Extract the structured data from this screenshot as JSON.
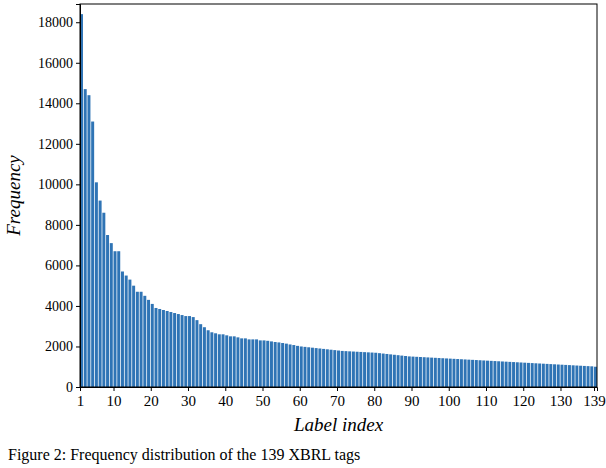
{
  "chart_data": {
    "type": "bar",
    "title": "Figure 2: Frequency distribution of the 139 XBRL tags",
    "x_label": "Label index",
    "y_label": "Frequency",
    "x": [
      1,
      2,
      3,
      4,
      5,
      6,
      7,
      8,
      9,
      10,
      11,
      12,
      13,
      14,
      15,
      16,
      17,
      18,
      19,
      20,
      21,
      22,
      23,
      24,
      25,
      26,
      27,
      28,
      29,
      30,
      31,
      32,
      33,
      34,
      35,
      36,
      37,
      38,
      39,
      40,
      41,
      42,
      43,
      44,
      45,
      46,
      47,
      48,
      49,
      50,
      51,
      52,
      53,
      54,
      55,
      56,
      57,
      58,
      59,
      60,
      61,
      62,
      63,
      64,
      65,
      66,
      67,
      68,
      69,
      70,
      71,
      72,
      73,
      74,
      75,
      76,
      77,
      78,
      79,
      80,
      81,
      82,
      83,
      84,
      85,
      86,
      87,
      88,
      89,
      90,
      91,
      92,
      93,
      94,
      95,
      96,
      97,
      98,
      99,
      100,
      101,
      102,
      103,
      104,
      105,
      106,
      107,
      108,
      109,
      110,
      111,
      112,
      113,
      114,
      115,
      116,
      117,
      118,
      119,
      120,
      121,
      122,
      123,
      124,
      125,
      126,
      127,
      128,
      129,
      130,
      131,
      132,
      133,
      134,
      135,
      136,
      137,
      138,
      139
    ],
    "values": [
      18400,
      14700,
      14400,
      13100,
      10100,
      9200,
      8600,
      7500,
      7100,
      6700,
      6700,
      5700,
      5500,
      5300,
      5000,
      4700,
      4700,
      4500,
      4300,
      4100,
      3900,
      3850,
      3800,
      3750,
      3700,
      3650,
      3600,
      3550,
      3500,
      3500,
      3450,
      3300,
      3100,
      2950,
      2800,
      2700,
      2650,
      2600,
      2600,
      2550,
      2500,
      2500,
      2450,
      2400,
      2400,
      2350,
      2350,
      2350,
      2300,
      2300,
      2280,
      2250,
      2220,
      2200,
      2170,
      2140,
      2100,
      2070,
      2030,
      2000,
      1980,
      1960,
      1940,
      1920,
      1900,
      1880,
      1860,
      1840,
      1820,
      1800,
      1780,
      1770,
      1760,
      1750,
      1740,
      1730,
      1720,
      1710,
      1700,
      1690,
      1670,
      1650,
      1630,
      1610,
      1590,
      1570,
      1550,
      1530,
      1510,
      1500,
      1490,
      1480,
      1470,
      1460,
      1450,
      1440,
      1430,
      1420,
      1410,
      1400,
      1390,
      1380,
      1370,
      1360,
      1350,
      1340,
      1330,
      1320,
      1310,
      1300,
      1290,
      1280,
      1270,
      1260,
      1250,
      1240,
      1230,
      1220,
      1210,
      1200,
      1190,
      1180,
      1170,
      1160,
      1150,
      1140,
      1130,
      1120,
      1110,
      1100,
      1090,
      1080,
      1070,
      1060,
      1050,
      1040,
      1030,
      1020,
      1000
    ],
    "color": "#2f74b5",
    "xlim": [
      1,
      139.8
    ],
    "xticks": [
      1,
      10,
      20,
      30,
      40,
      50,
      60,
      70,
      80,
      90,
      100,
      110,
      120,
      130,
      139
    ],
    "ylim": [
      0,
      18900
    ],
    "yticks": [
      0,
      2000,
      4000,
      6000,
      8000,
      10000,
      12000,
      14000,
      16000,
      18000
    ],
    "grid": false
  }
}
